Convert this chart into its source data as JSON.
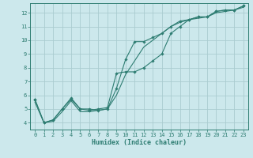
{
  "xlabel": "Humidex (Indice chaleur)",
  "bg_color": "#cce8ec",
  "grid_color": "#aaccd0",
  "line_color": "#2e7d72",
  "xlim": [
    -0.5,
    23.5
  ],
  "ylim": [
    3.5,
    12.7
  ],
  "xticks": [
    0,
    1,
    2,
    3,
    4,
    5,
    6,
    7,
    8,
    9,
    10,
    11,
    12,
    13,
    14,
    15,
    16,
    17,
    18,
    19,
    20,
    21,
    22,
    23
  ],
  "yticks": [
    4,
    5,
    6,
    7,
    8,
    9,
    10,
    11,
    12
  ],
  "line1_x": [
    0,
    1,
    2,
    3,
    4,
    5,
    6,
    7,
    8,
    9,
    10,
    11,
    12,
    13,
    14,
    15,
    16,
    17,
    18,
    19,
    20,
    21,
    22,
    23
  ],
  "line1_y": [
    5.7,
    4.0,
    4.2,
    5.0,
    5.8,
    5.0,
    5.0,
    4.9,
    5.0,
    6.5,
    8.6,
    9.9,
    9.9,
    10.2,
    10.5,
    11.0,
    11.4,
    11.5,
    11.7,
    11.7,
    12.1,
    12.2,
    12.2,
    12.5
  ],
  "line2_x": [
    0,
    1,
    2,
    3,
    4,
    5,
    6,
    7,
    8,
    9,
    10,
    11,
    12,
    13,
    14,
    15,
    16,
    17,
    18,
    19,
    20,
    21,
    22,
    23
  ],
  "line2_y": [
    5.7,
    4.0,
    4.2,
    5.0,
    5.7,
    5.0,
    4.9,
    5.0,
    5.1,
    7.6,
    7.7,
    7.7,
    8.0,
    8.5,
    9.0,
    10.5,
    11.0,
    11.5,
    11.7,
    11.7,
    12.1,
    12.2,
    12.2,
    12.5
  ],
  "line3_x": [
    0,
    1,
    2,
    3,
    4,
    5,
    6,
    7,
    8,
    9,
    10,
    11,
    12,
    13,
    14,
    15,
    16,
    17,
    18,
    19,
    20,
    21,
    22,
    23
  ],
  "line3_y": [
    5.5,
    4.0,
    4.1,
    4.8,
    5.6,
    4.8,
    4.8,
    4.9,
    5.0,
    6.0,
    7.5,
    8.5,
    9.5,
    10.0,
    10.5,
    11.0,
    11.3,
    11.5,
    11.6,
    11.7,
    12.0,
    12.1,
    12.2,
    12.4
  ]
}
